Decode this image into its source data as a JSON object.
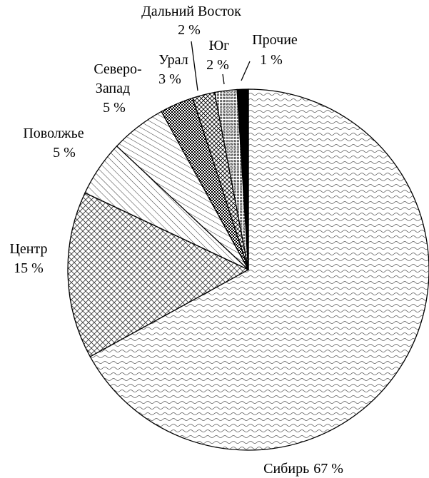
{
  "chart_data": {
    "type": "pie",
    "categories": [
      "Сибирь",
      "Центр",
      "Поволжье",
      "Северо-Запад",
      "Урал",
      "Дальний Восток",
      "Юг",
      "Прочие"
    ],
    "values": [
      67,
      15,
      5,
      5,
      3,
      2,
      2,
      1
    ],
    "value_labels": [
      "67 %",
      "15 %",
      "5 %",
      "5 %",
      "3 %",
      "2 %",
      "2 %",
      "1 %"
    ]
  }
}
